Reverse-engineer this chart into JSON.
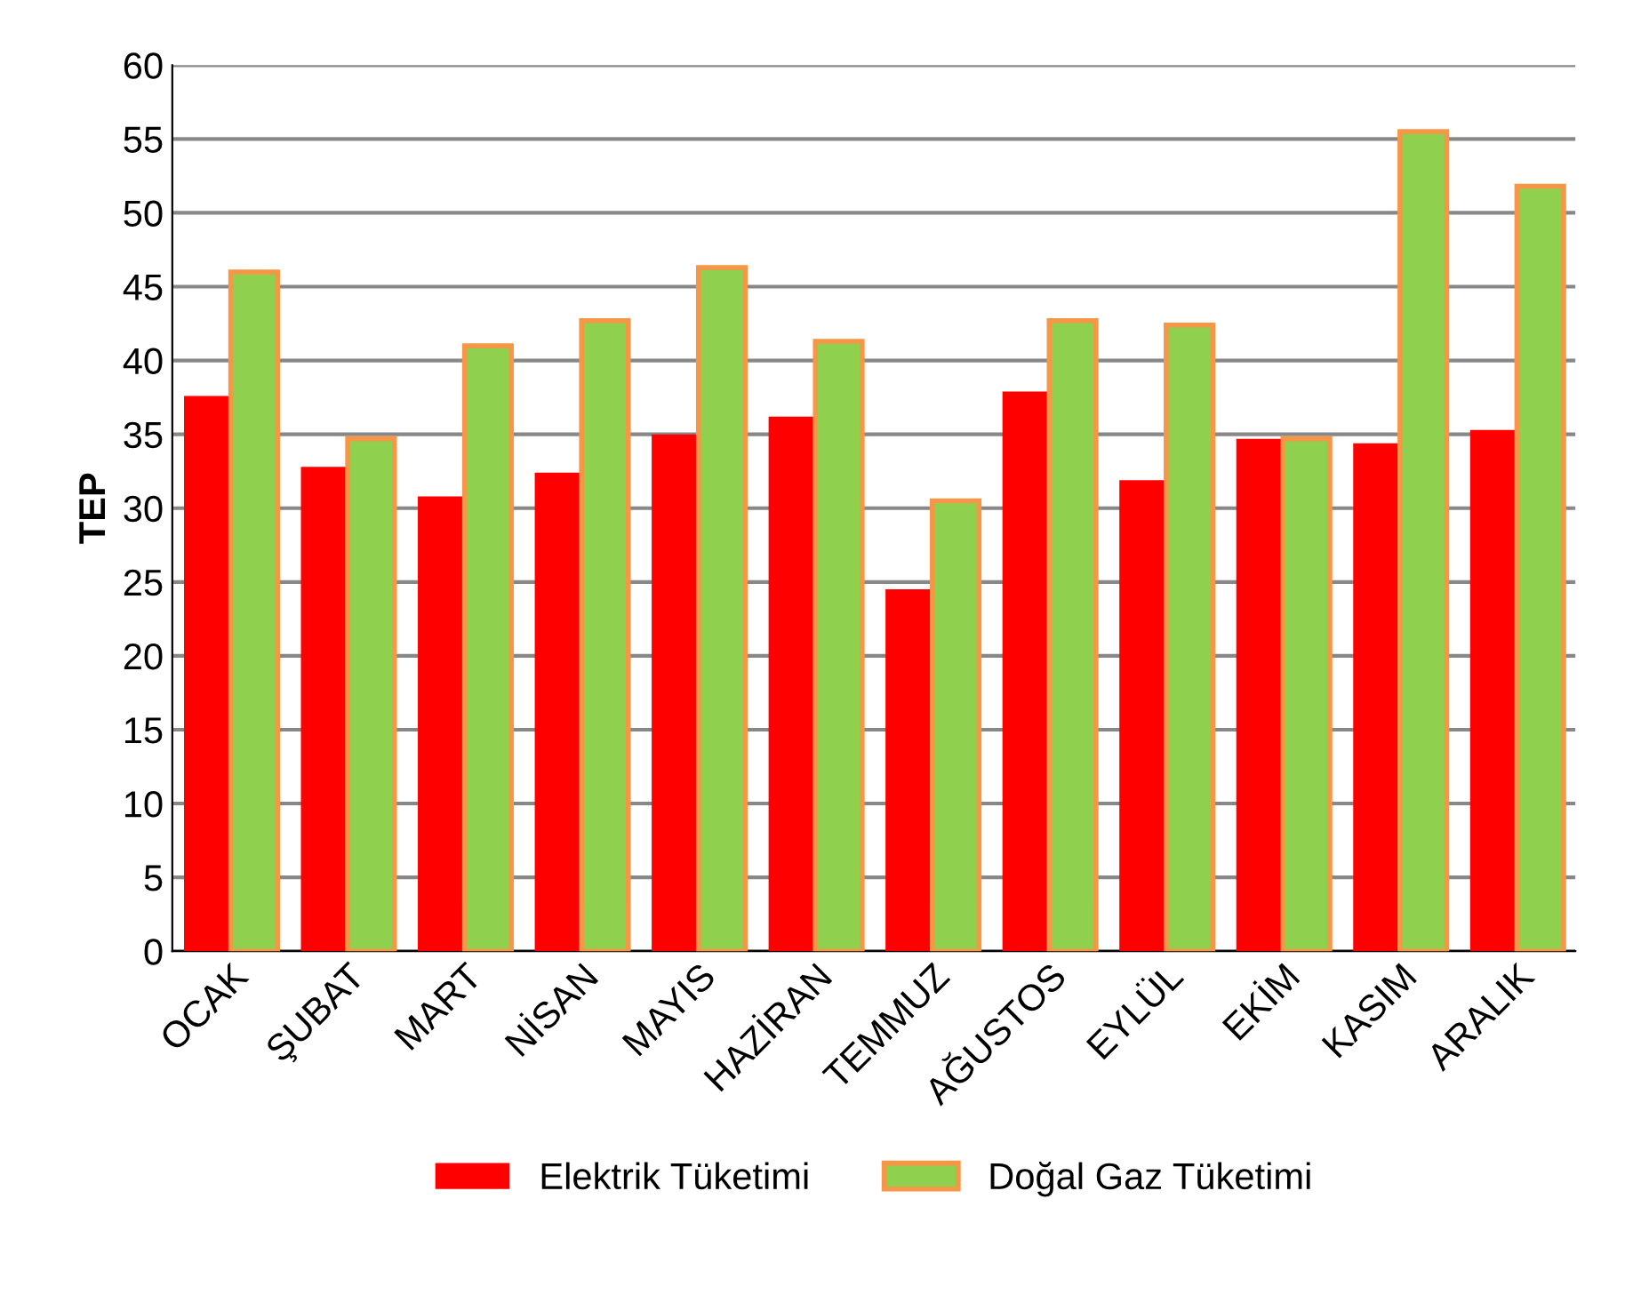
{
  "chart_data": {
    "type": "bar",
    "ylabel": "TEP",
    "categories": [
      "OCAK",
      "ŞUBAT",
      "MART",
      "NİSAN",
      "MAYIS",
      "HAZİRAN",
      "TEMMUZ",
      "AĞUSTOS",
      "EYLÜL",
      "EKİM",
      "KASIM",
      "ARALIK"
    ],
    "series": [
      {
        "name": "Elektrik Tüketimi",
        "color": "#ff0000",
        "values": [
          37.6,
          32.8,
          30.8,
          32.4,
          35.0,
          36.2,
          24.5,
          37.9,
          31.9,
          34.7,
          34.4,
          35.3
        ]
      },
      {
        "name": "Doğal Gaz Tüketimi",
        "color": "#8fd14f",
        "values": [
          46.0,
          34.7,
          41.0,
          42.7,
          46.3,
          41.3,
          30.5,
          42.7,
          42.4,
          34.7,
          55.5,
          51.8
        ]
      }
    ],
    "ylim": [
      0,
      60
    ],
    "yticks": [
      0,
      5,
      10,
      15,
      20,
      25,
      30,
      35,
      40,
      45,
      50,
      55,
      60
    ],
    "grid": "y",
    "legend": "bottom"
  }
}
